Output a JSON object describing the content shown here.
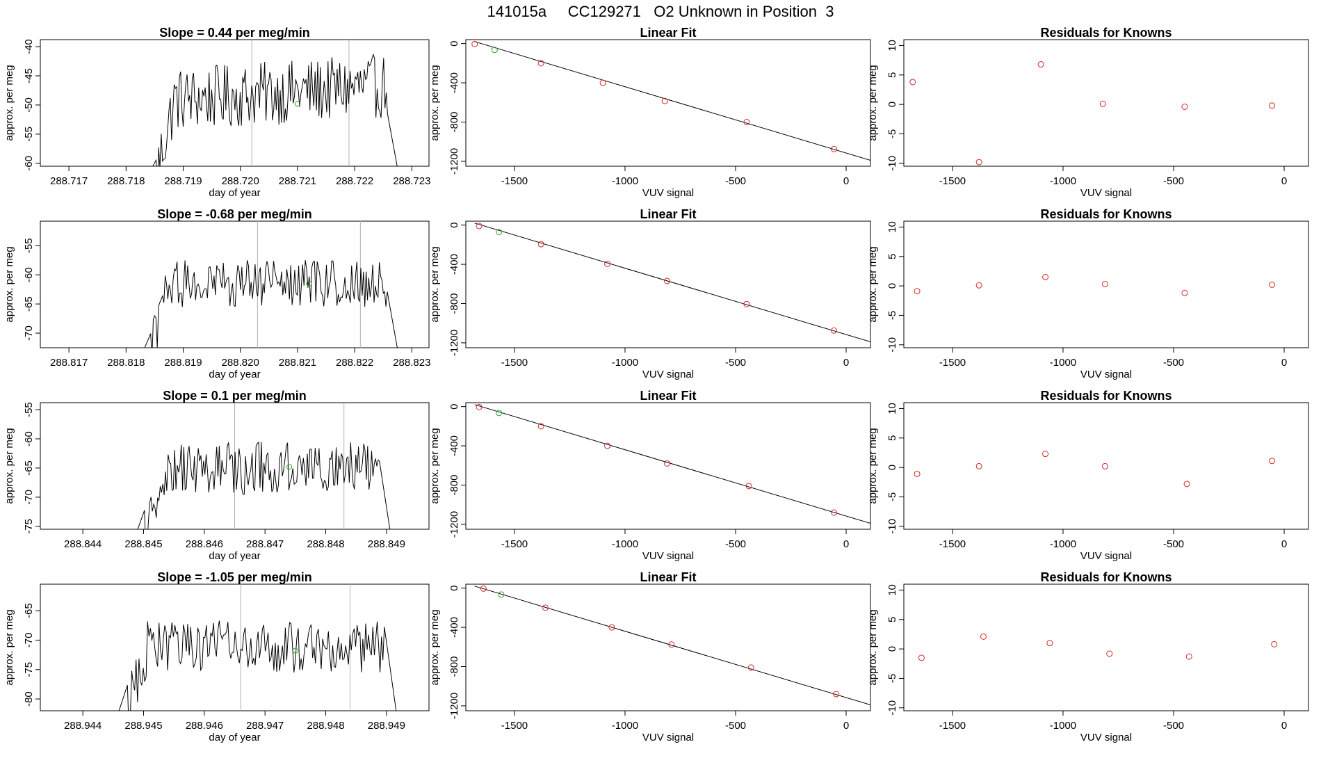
{
  "page": {
    "title": "141015a     CC129271   O2 Unknown in Position  3"
  },
  "colors": {
    "known": "#d62728",
    "unknown": "#2ca02c",
    "line": "#000000",
    "vline": "#b0b0b0"
  },
  "chart_data": [
    {
      "type": "line",
      "row": 0,
      "title": "Slope =  0.44  per meg/min",
      "xlabel": "day of year",
      "ylabel": "approx. per meg",
      "xlim": [
        288.7165,
        288.7233
      ],
      "ylim": [
        -60.5,
        -38.8
      ],
      "xticks": [
        "288.717",
        "288.718",
        "288.719",
        "288.720",
        "288.721",
        "288.722",
        "288.723"
      ],
      "yticks": [
        -40,
        -45,
        -50,
        -55,
        -60
      ],
      "x_start": 288.7183,
      "x_end": 288.7228,
      "base": -48,
      "amp": 5.5,
      "trend": 0.44,
      "vlines": [
        288.7202,
        288.7219
      ],
      "unknown_point": {
        "x": 288.721,
        "y": -49.8
      }
    },
    {
      "type": "scatter",
      "row": 0,
      "title": "Linear Fit",
      "xlabel": "VUV signal",
      "ylabel": "approx. per meg",
      "xlim": [
        -1720,
        110
      ],
      "ylim": [
        -1250,
        40
      ],
      "xticks": [
        -1500,
        -1000,
        -500,
        0
      ],
      "yticks": [
        0,
        -400,
        -800,
        -1200
      ],
      "line": [
        [
          -1680,
          20
        ],
        [
          110,
          -1190
        ]
      ],
      "known_points": [
        [
          -1680,
          -5
        ],
        [
          -1380,
          -200
        ],
        [
          -1100,
          -400
        ],
        [
          -820,
          -585
        ],
        [
          -450,
          -800
        ],
        [
          -55,
          -1075
        ]
      ],
      "unknown_point": [
        -1590,
        -65
      ]
    },
    {
      "type": "scatter",
      "row": 0,
      "title": "Residuals for Knowns",
      "xlabel": "VUV signal",
      "ylabel": "approx. per meg",
      "xlim": [
        -1720,
        110
      ],
      "ylim": [
        -10.5,
        11
      ],
      "xticks": [
        -1500,
        -1000,
        -500,
        0
      ],
      "yticks": [
        10,
        5,
        0,
        -5,
        -10
      ],
      "points": [
        [
          -1680,
          3.8
        ],
        [
          -1380,
          -9.8
        ],
        [
          -1100,
          6.8
        ],
        [
          -820,
          0.1
        ],
        [
          -450,
          -0.4
        ],
        [
          -55,
          -0.2
        ]
      ]
    },
    {
      "type": "line",
      "row": 1,
      "title": "Slope =  -0.68  per meg/min",
      "xlabel": "day of year",
      "ylabel": "approx. per meg",
      "xlim": [
        288.8165,
        288.8233
      ],
      "ylim": [
        -72.5,
        -50.8
      ],
      "xticks": [
        "288.817",
        "288.818",
        "288.819",
        "288.820",
        "288.821",
        "288.822",
        "288.823"
      ],
      "yticks": [
        -55,
        -60,
        -65,
        -70
      ],
      "x_start": 288.8182,
      "x_end": 288.8228,
      "base": -61.5,
      "amp": 4,
      "trend": 0.0,
      "vlines": [
        288.8203,
        288.8221
      ],
      "unknown_point": {
        "x": 288.8212,
        "y": -61.5
      }
    },
    {
      "type": "scatter",
      "row": 1,
      "title": "Linear Fit",
      "xlabel": "VUV signal",
      "ylabel": "approx. per meg",
      "xlim": [
        -1720,
        110
      ],
      "ylim": [
        -1250,
        40
      ],
      "xticks": [
        -1500,
        -1000,
        -500,
        0
      ],
      "yticks": [
        0,
        -400,
        -800,
        -1200
      ],
      "line": [
        [
          -1680,
          20
        ],
        [
          110,
          -1190
        ]
      ],
      "known_points": [
        [
          -1660,
          -10
        ],
        [
          -1380,
          -195
        ],
        [
          -1080,
          -395
        ],
        [
          -810,
          -570
        ],
        [
          -450,
          -805
        ],
        [
          -55,
          -1075
        ]
      ],
      "unknown_point": [
        -1570,
        -70
      ]
    },
    {
      "type": "scatter",
      "row": 1,
      "title": "Residuals for Knowns",
      "xlabel": "VUV signal",
      "ylabel": "approx. per meg",
      "xlim": [
        -1720,
        110
      ],
      "ylim": [
        -10.5,
        11
      ],
      "xticks": [
        -1500,
        -1000,
        -500,
        0
      ],
      "yticks": [
        10,
        5,
        0,
        -5,
        -10
      ],
      "points": [
        [
          -1660,
          -0.9
        ],
        [
          -1380,
          0.1
        ],
        [
          -1080,
          1.5
        ],
        [
          -810,
          0.3
        ],
        [
          -450,
          -1.2
        ],
        [
          -55,
          0.2
        ]
      ]
    },
    {
      "type": "line",
      "row": 2,
      "title": "Slope =  0.1  per meg/min",
      "xlabel": "day of year",
      "ylabel": "approx. per meg",
      "xlim": [
        288.8433,
        288.8497
      ],
      "ylim": [
        -75.5,
        -53.8
      ],
      "xticks": [
        "288.844",
        "288.845",
        "288.846",
        "288.847",
        "288.848",
        "288.849"
      ],
      "yticks": [
        -55,
        -60,
        -65,
        -70,
        -75
      ],
      "x_start": 288.8448,
      "x_end": 288.8491,
      "base": -65,
      "amp": 4.5,
      "trend": 0.1,
      "vlines": [
        288.8465,
        288.8483
      ],
      "unknown_point": {
        "x": 288.8474,
        "y": -64.8
      }
    },
    {
      "type": "scatter",
      "row": 2,
      "title": "Linear Fit",
      "xlabel": "VUV signal",
      "ylabel": "approx. per meg",
      "xlim": [
        -1720,
        110
      ],
      "ylim": [
        -1250,
        40
      ],
      "xticks": [
        -1500,
        -1000,
        -500,
        0
      ],
      "yticks": [
        0,
        -400,
        -800,
        -1200
      ],
      "line": [
        [
          -1680,
          20
        ],
        [
          110,
          -1190
        ]
      ],
      "known_points": [
        [
          -1660,
          -5
        ],
        [
          -1380,
          -200
        ],
        [
          -1080,
          -400
        ],
        [
          -810,
          -580
        ],
        [
          -440,
          -810
        ],
        [
          -55,
          -1080
        ]
      ],
      "unknown_point": [
        -1570,
        -65
      ]
    },
    {
      "type": "scatter",
      "row": 2,
      "title": "Residuals for Knowns",
      "xlabel": "VUV signal",
      "ylabel": "approx. per meg",
      "xlim": [
        -1720,
        110
      ],
      "ylim": [
        -10.5,
        11
      ],
      "xticks": [
        -1500,
        -1000,
        -500,
        0
      ],
      "yticks": [
        10,
        5,
        0,
        -5,
        -10
      ],
      "points": [
        [
          -1660,
          -1.1
        ],
        [
          -1380,
          0.2
        ],
        [
          -1080,
          2.3
        ],
        [
          -810,
          0.2
        ],
        [
          -440,
          -2.8
        ],
        [
          -55,
          1.1
        ]
      ]
    },
    {
      "type": "line",
      "row": 3,
      "title": "Slope =  -1.05  per meg/min",
      "xlabel": "day of year",
      "ylabel": "approx. per meg",
      "xlim": [
        288.9433,
        288.9497
      ],
      "ylim": [
        -82,
        -60.5
      ],
      "xticks": [
        "288.944",
        "288.945",
        "288.946",
        "288.947",
        "288.948",
        "288.949"
      ],
      "yticks": [
        -65,
        -70,
        -75,
        -80
      ],
      "x_start": 288.9445,
      "x_end": 288.9492,
      "base": -71,
      "amp": 4.5,
      "trend": 0.0,
      "vlines": [
        288.9466,
        288.9484
      ],
      "unknown_point": {
        "x": 288.9475,
        "y": -71.8
      }
    },
    {
      "type": "scatter",
      "row": 3,
      "title": "Linear Fit",
      "xlabel": "VUV signal",
      "ylabel": "approx. per meg",
      "xlim": [
        -1720,
        110
      ],
      "ylim": [
        -1250,
        40
      ],
      "xticks": [
        -1500,
        -1000,
        -500,
        0
      ],
      "yticks": [
        0,
        -400,
        -800,
        -1200
      ],
      "line": [
        [
          -1680,
          20
        ],
        [
          110,
          -1190
        ]
      ],
      "known_points": [
        [
          -1640,
          -5
        ],
        [
          -1360,
          -200
        ],
        [
          -1060,
          -400
        ],
        [
          -790,
          -575
        ],
        [
          -430,
          -810
        ],
        [
          -45,
          -1080
        ]
      ],
      "unknown_point": [
        -1560,
        -65
      ]
    },
    {
      "type": "scatter",
      "row": 3,
      "title": "Residuals for Knowns",
      "xlabel": "VUV signal",
      "ylabel": "approx. per meg",
      "xlim": [
        -1720,
        110
      ],
      "ylim": [
        -10.5,
        11
      ],
      "xticks": [
        -1500,
        -1000,
        -500,
        0
      ],
      "yticks": [
        10,
        5,
        0,
        -5,
        -10
      ],
      "points": [
        [
          -1640,
          -1.5
        ],
        [
          -1360,
          2.1
        ],
        [
          -1060,
          1.0
        ],
        [
          -790,
          -0.8
        ],
        [
          -430,
          -1.3
        ],
        [
          -45,
          0.8
        ]
      ]
    }
  ]
}
